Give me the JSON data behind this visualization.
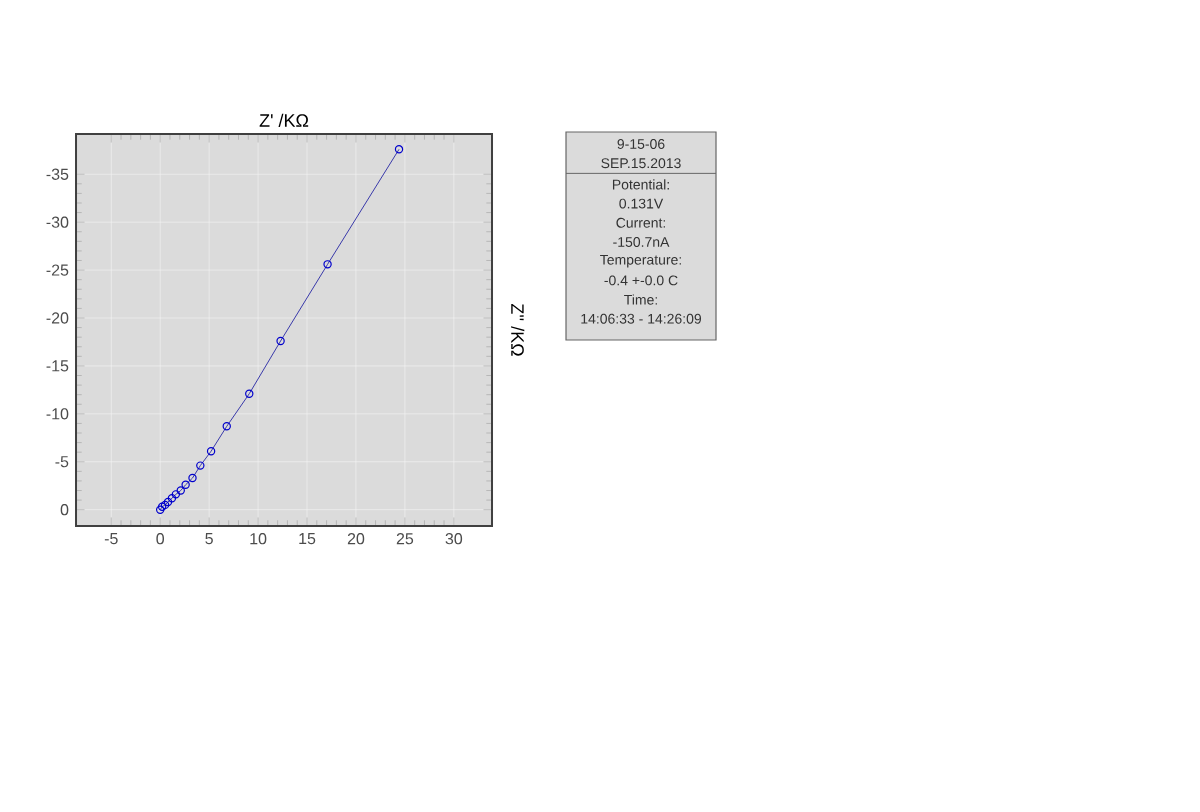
{
  "chart_data": {
    "type": "line",
    "xlabel": "Z' /KΩ",
    "ylabel": "Z'' /KΩ",
    "x": [
      0,
      0.2,
      0.5,
      0.8,
      1.2,
      1.6,
      2.1,
      2.6,
      3.3,
      4.1,
      5.2,
      6.8,
      9.1,
      12.3,
      17.1,
      24.4
    ],
    "series": [
      {
        "color": "#0000cc",
        "values": [
          0,
          -0.3,
          -0.5,
          -0.8,
          -1.2,
          -1.6,
          -2.0,
          -2.6,
          -3.3,
          -4.6,
          -6.1,
          -8.7,
          -12.1,
          -17.6,
          -25.6,
          -37.6
        ]
      }
    ],
    "marker": "circle",
    "line_style": "solid",
    "grid": true,
    "xlim": [
      -8.6,
      33.9
    ],
    "ylim": [
      1.7,
      -39.2
    ],
    "xticks": [
      -5,
      0,
      5,
      10,
      15,
      20,
      25,
      30
    ],
    "yticks": [
      0,
      -5,
      -10,
      -15,
      -20,
      -25,
      -30,
      -35
    ],
    "annotations": [
      "9-15-06",
      "SEP.15.2013",
      "Potential:",
      "0.131V",
      "Current:",
      "-150.7nA",
      "Temperature:",
      "-0.4 +-0.0 C",
      "Time:",
      "14:06:33 - 14:26:09"
    ]
  }
}
